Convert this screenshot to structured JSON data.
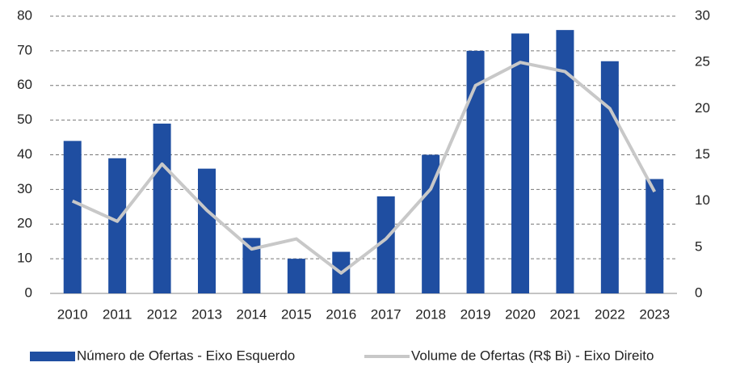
{
  "chart_data": {
    "type": "bar_line",
    "categories": [
      "2010",
      "2011",
      "2012",
      "2013",
      "2014",
      "2015",
      "2016",
      "2017",
      "2018",
      "2019",
      "2020",
      "2021",
      "2022",
      "2023"
    ],
    "series": [
      {
        "name": "Número de Ofertas - Eixo Esquerdo",
        "color": "#1f4ea1",
        "type": "bar",
        "values": [
          44,
          39,
          49,
          36,
          16,
          10,
          12,
          28,
          40,
          70,
          75,
          76,
          67,
          33
        ]
      },
      {
        "name": "Volume de Ofertas (R$ Bi) - Eixo Direito",
        "color": "#c8c8c8",
        "type": "line",
        "axis": "y2",
        "values": [
          10,
          7.8,
          14,
          9,
          4.8,
          5.9,
          2.2,
          5.9,
          11.3,
          22.5,
          25,
          24,
          20,
          11
        ]
      }
    ],
    "ylim": [
      0,
      80
    ],
    "yticks": [
      0,
      10,
      20,
      30,
      40,
      50,
      60,
      70,
      80
    ],
    "y2lim": [
      0,
      30
    ],
    "y2ticks": [
      0,
      5,
      10,
      15,
      20,
      25,
      30
    ],
    "grid": true,
    "legend": "bottom"
  }
}
